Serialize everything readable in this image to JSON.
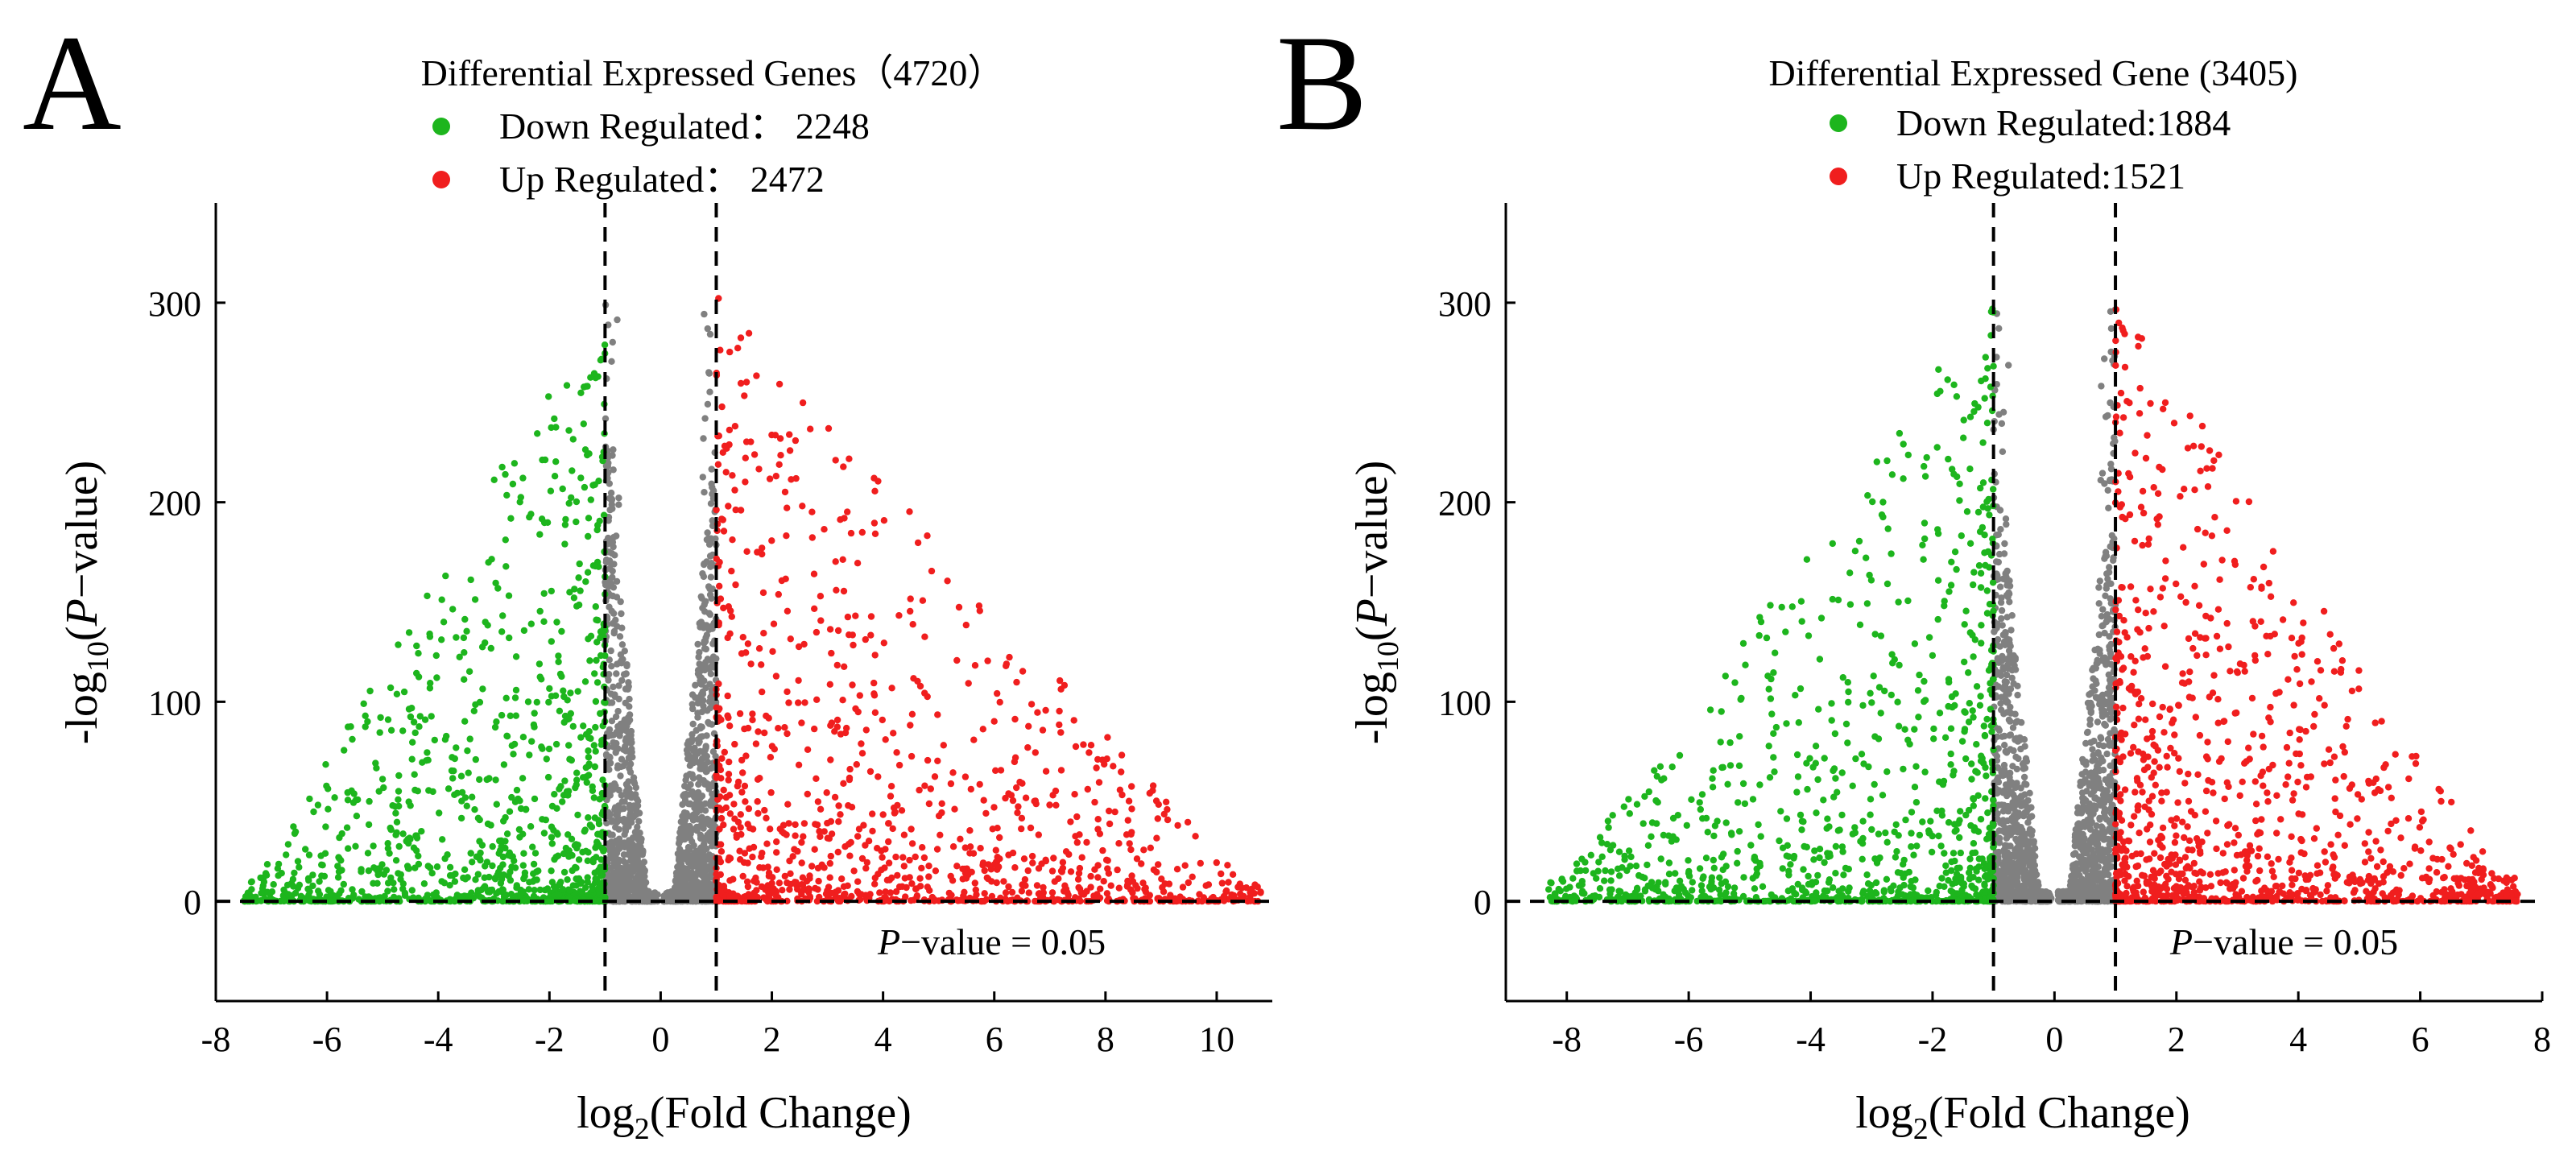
{
  "colors": {
    "down": "#1db51d",
    "up": "#f01e1e",
    "ns": "#808080",
    "axis": "#000000"
  },
  "chart_data": [
    {
      "type": "scatter",
      "panel_label": "A",
      "title": "Differential Expressed Genes（4720）",
      "legend": [
        {
          "label": "Down Regulated： 2248",
          "series": "down"
        },
        {
          "label": "Up Regulated： 2472",
          "series": "up"
        }
      ],
      "xlabel_main": "log",
      "xlabel_sub": "2",
      "xlabel_rest": "(Fold Change)",
      "ylabel_pre": "-log",
      "ylabel_sub": "10",
      "ylabel_open": "(",
      "ylabel_italic": "P",
      "ylabel_post": "−value)",
      "xlim": [
        -8,
        11
      ],
      "ylim": [
        -50,
        350
      ],
      "xticks": [
        -8,
        -6,
        -4,
        -2,
        0,
        2,
        4,
        6,
        8,
        10
      ],
      "xtick_labels": [
        "-8",
        "-6",
        "-4",
        "-2",
        "0",
        "2",
        "4",
        "6",
        "8",
        "10"
      ],
      "yticks": [
        0,
        100,
        200,
        300
      ],
      "ytick_labels": [
        "0",
        "100",
        "200",
        "300"
      ],
      "fc_threshold_lines": [
        -1,
        1
      ],
      "pvalue_line": 0,
      "annotation_italic": "P",
      "annotation": "−value = 0.05",
      "counts": {
        "down": 2248,
        "up": 2472
      },
      "scatter_params": {
        "xmin": -7.5,
        "xmax": 10.8,
        "max_y": 305,
        "seed": 11
      }
    },
    {
      "type": "scatter",
      "panel_label": "B",
      "title": "Differential Expressed Gene (3405)",
      "legend": [
        {
          "label": "Down Regulated:1884",
          "series": "down"
        },
        {
          "label": "Up Regulated:1521",
          "series": "up"
        }
      ],
      "xlabel_main": "log",
      "xlabel_sub": "2",
      "xlabel_rest": "(Fold Change)",
      "ylabel_pre": "-log",
      "ylabel_sub": "10",
      "ylabel_open": "(",
      "ylabel_italic": "P",
      "ylabel_post": "−value)",
      "xlim": [
        -9,
        8
      ],
      "ylim": [
        -50,
        350
      ],
      "xticks": [
        -8,
        -6,
        -4,
        -2,
        0,
        2,
        4,
        6,
        8
      ],
      "xtick_labels": [
        "-8",
        "-6",
        "-4",
        "-2",
        "0",
        "2",
        "4",
        "6",
        "8"
      ],
      "yticks": [
        0,
        100,
        200,
        300
      ],
      "ytick_labels": [
        "0",
        "100",
        "200",
        "300"
      ],
      "fc_threshold_lines": [
        -1,
        1
      ],
      "pvalue_line": 0,
      "annotation_italic": "P",
      "annotation": "−value = 0.05",
      "counts": {
        "down": 1884,
        "up": 1521
      },
      "scatter_params": {
        "xmin": -8.3,
        "xmax": 7.6,
        "max_y": 305,
        "seed": 29
      }
    }
  ]
}
